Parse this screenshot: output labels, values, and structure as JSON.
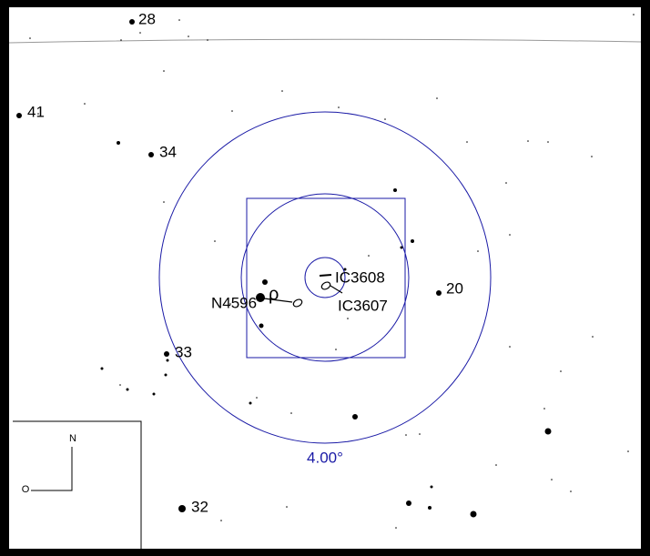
{
  "star_labels": [
    "28",
    "41",
    "34",
    "33",
    "32",
    "20"
  ],
  "objects": {
    "star": "ρ",
    "galaxy_1": "N4596",
    "galaxy_2": "IC3608",
    "galaxy_3": "IC3607"
  },
  "scale_label": "4.00°",
  "compass": {
    "north": "N",
    "east": "O"
  }
}
